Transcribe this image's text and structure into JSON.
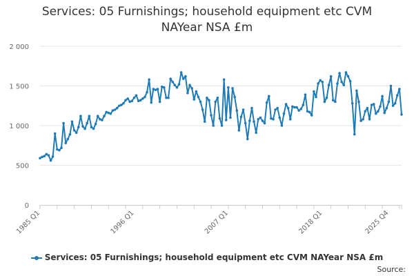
{
  "chart_data": {
    "type": "line",
    "title_lines": [
      "Services: 05 Furnishings; household equipment etc CVM",
      "NAYear NSA £m"
    ],
    "xlabel": "",
    "ylabel": "",
    "ylim": [
      0,
      2000
    ],
    "y_ticks": [
      0,
      500,
      1000,
      1500,
      2000
    ],
    "y_tick_labels": [
      "0",
      "500",
      "1 000",
      "1 500",
      "2 000"
    ],
    "x_start": "1985 Q1",
    "x_end": "2025 Q4",
    "x_tick_labels": [
      {
        "label": "1985 Q1",
        "index": 0
      },
      {
        "label": "1996 Q1",
        "index": 44
      },
      {
        "label": "2007 Q1",
        "index": 88
      },
      {
        "label": "2018 Q1",
        "index": 132
      },
      {
        "label": "2025 Q4",
        "index": 163
      }
    ],
    "grid": true,
    "legend_position": "bottom",
    "series": [
      {
        "name": "Services: 05 Furnishings; household equipment etc CVM NAYear NSA £m",
        "color": "#1f7ab6",
        "values": [
          590,
          605,
          615,
          640,
          625,
          560,
          610,
          900,
          700,
          690,
          720,
          1030,
          780,
          830,
          890,
          1050,
          940,
          910,
          980,
          1120,
          990,
          960,
          1030,
          1120,
          980,
          960,
          1020,
          1120,
          1080,
          1070,
          1120,
          1170,
          1160,
          1150,
          1190,
          1200,
          1220,
          1250,
          1260,
          1280,
          1320,
          1340,
          1300,
          1310,
          1350,
          1380,
          1310,
          1320,
          1340,
          1360,
          1420,
          1580,
          1290,
          1460,
          1450,
          1460,
          1300,
          1490,
          1480,
          1350,
          1350,
          1590,
          1550,
          1510,
          1480,
          1520,
          1670,
          1590,
          1620,
          1410,
          1510,
          1470,
          1330,
          1430,
          1360,
          1300,
          1200,
          1050,
          1350,
          1320,
          1130,
          1000,
          1300,
          1350,
          1090,
          1000,
          1580,
          1070,
          1480,
          1100,
          1470,
          1360,
          1190,
          940,
          1110,
          1200,
          1030,
          830,
          1060,
          1220,
          1050,
          910,
          1080,
          1100,
          1060,
          1030,
          1290,
          1370,
          1090,
          1080,
          1200,
          1220,
          1100,
          1000,
          1150,
          1270,
          1220,
          1080,
          1240,
          1230,
          1230,
          1190,
          1210,
          1260,
          1390,
          1180,
          1170,
          1130,
          1430,
          1360,
          1530,
          1570,
          1550,
          1300,
          1350,
          1510,
          1620,
          1320,
          1300,
          1530,
          1660,
          1550,
          1510,
          1670,
          1620,
          1560,
          1280,
          890,
          1440,
          1300,
          1060,
          1080,
          1180,
          1220,
          1080,
          1260,
          1270,
          1150,
          1180,
          1240,
          1370,
          1160,
          1220,
          1300,
          1500,
          1250,
          1280,
          1380,
          1460,
          1140
        ]
      }
    ]
  },
  "source_label": "Source:"
}
